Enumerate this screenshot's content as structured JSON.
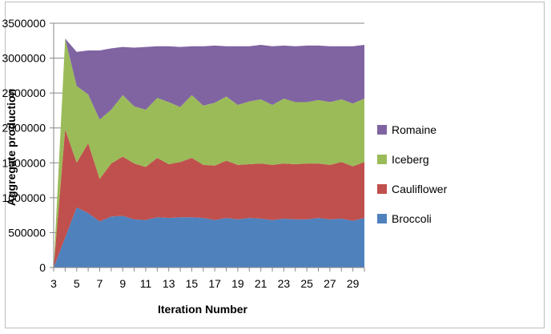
{
  "chart_data": {
    "type": "area",
    "stacked": true,
    "xlabel": "Iteration Number",
    "ylabel": "Aggregate production",
    "ylim": [
      0,
      3500000
    ],
    "yticks": [
      0,
      500000,
      1000000,
      1500000,
      2000000,
      2500000,
      3000000,
      3500000
    ],
    "ytick_labels": [
      "0",
      "500000",
      "1000000",
      "1500000",
      "2000000",
      "2500000",
      "3000000",
      "3500000"
    ],
    "x": [
      3,
      4,
      5,
      6,
      7,
      8,
      9,
      10,
      11,
      12,
      13,
      14,
      15,
      16,
      17,
      18,
      19,
      20,
      21,
      22,
      23,
      24,
      25,
      26,
      27,
      28,
      29,
      30
    ],
    "xtick_labels": [
      "3",
      "5",
      "7",
      "9",
      "11",
      "13",
      "15",
      "17",
      "19",
      "21",
      "23",
      "25",
      "27",
      "29"
    ],
    "grid": {
      "horizontal": true,
      "vertical": false
    },
    "legend_position": "right",
    "series": [
      {
        "name": "Broccoli",
        "color": "#4f81bd",
        "values": [
          0,
          430000,
          860000,
          780000,
          660000,
          730000,
          740000,
          690000,
          680000,
          720000,
          710000,
          720000,
          720000,
          710000,
          680000,
          710000,
          690000,
          710000,
          700000,
          680000,
          700000,
          690000,
          690000,
          710000,
          690000,
          700000,
          670000,
          710000
        ]
      },
      {
        "name": "Cauliflower",
        "color": "#c0504d",
        "values": [
          0,
          1550000,
          640000,
          1000000,
          610000,
          760000,
          850000,
          800000,
          760000,
          850000,
          770000,
          790000,
          850000,
          760000,
          780000,
          820000,
          780000,
          770000,
          790000,
          790000,
          790000,
          790000,
          800000,
          780000,
          780000,
          810000,
          780000,
          800000
        ]
      },
      {
        "name": "Iceberg",
        "color": "#9bbb59",
        "values": [
          0,
          1300000,
          1100000,
          700000,
          850000,
          770000,
          880000,
          820000,
          820000,
          860000,
          890000,
          790000,
          900000,
          850000,
          900000,
          920000,
          860000,
          900000,
          920000,
          860000,
          930000,
          890000,
          880000,
          910000,
          900000,
          900000,
          900000,
          910000
        ]
      },
      {
        "name": "Romaine",
        "color": "#8064a2",
        "values": [
          0,
          0,
          490000,
          630000,
          990000,
          880000,
          690000,
          840000,
          900000,
          740000,
          800000,
          860000,
          700000,
          850000,
          820000,
          720000,
          840000,
          790000,
          780000,
          840000,
          760000,
          800000,
          810000,
          780000,
          800000,
          760000,
          820000,
          770000
        ]
      }
    ],
    "legend_order": [
      "Romaine",
      "Iceberg",
      "Cauliflower",
      "Broccoli"
    ]
  }
}
